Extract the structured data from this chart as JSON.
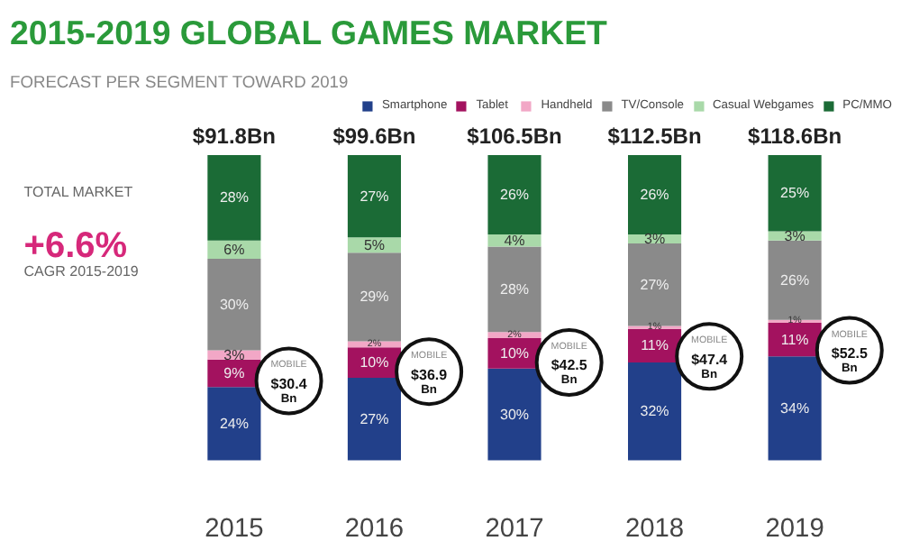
{
  "chart_data": {
    "type": "bar",
    "stacked": true,
    "title": "2015-2019 GLOBAL GAMES MARKET",
    "subtitle": "FORECAST PER SEGMENT TOWARD 2019",
    "categories": [
      "2015",
      "2016",
      "2017",
      "2018",
      "2019"
    ],
    "series": [
      {
        "name": "Smartphone",
        "color": "#22408a",
        "values": [
          24,
          27,
          30,
          32,
          34
        ],
        "value_labels": [
          "24%",
          "27%",
          "30%",
          "32%",
          "34%"
        ]
      },
      {
        "name": "Tablet",
        "color": "#a3125f",
        "values": [
          9,
          10,
          10,
          11,
          11
        ],
        "value_labels": [
          "9%",
          "10%",
          "10%",
          "11%",
          "11%"
        ]
      },
      {
        "name": "Handheld",
        "color": "#f2a7c6",
        "values": [
          3,
          2,
          2,
          1,
          1
        ],
        "value_labels": [
          "3%",
          "2%",
          "2%",
          "1%",
          "1%"
        ]
      },
      {
        "name": "TV/Console",
        "color": "#8a8a8a",
        "values": [
          30,
          29,
          28,
          27,
          26
        ],
        "value_labels": [
          "30%",
          "29%",
          "28%",
          "27%",
          "26%"
        ]
      },
      {
        "name": "Casual Webgames",
        "color": "#a9d9a9",
        "values": [
          6,
          5,
          4,
          3,
          3
        ],
        "value_labels": [
          "6%",
          "5%",
          "4%",
          "3%",
          "3%"
        ]
      },
      {
        "name": "PC/MMO",
        "color": "#1b6b36",
        "values": [
          28,
          27,
          26,
          26,
          25
        ],
        "value_labels": [
          "28%",
          "27%",
          "26%",
          "26%",
          "25%"
        ]
      }
    ],
    "annotations": [
      "TOTAL MARKET",
      "+6.6%",
      "CAGR 2015-2019",
      "$91.8Bn",
      "$99.6Bn",
      "$106.5Bn",
      "$112.5Bn",
      "$118.6Bn",
      {
        "text": "MOBILE $30.4 Bn",
        "x": "2015"
      },
      {
        "text": "MOBILE $36.9 Bn",
        "x": "2016"
      },
      {
        "text": "MOBILE $42.5 Bn",
        "x": "2017"
      },
      {
        "text": "MOBILE $47.4 Bn",
        "x": "2018"
      },
      {
        "text": "MOBILE $52.5 Bn",
        "x": "2019"
      }
    ],
    "legend": "top right",
    "grid": false
  }
}
